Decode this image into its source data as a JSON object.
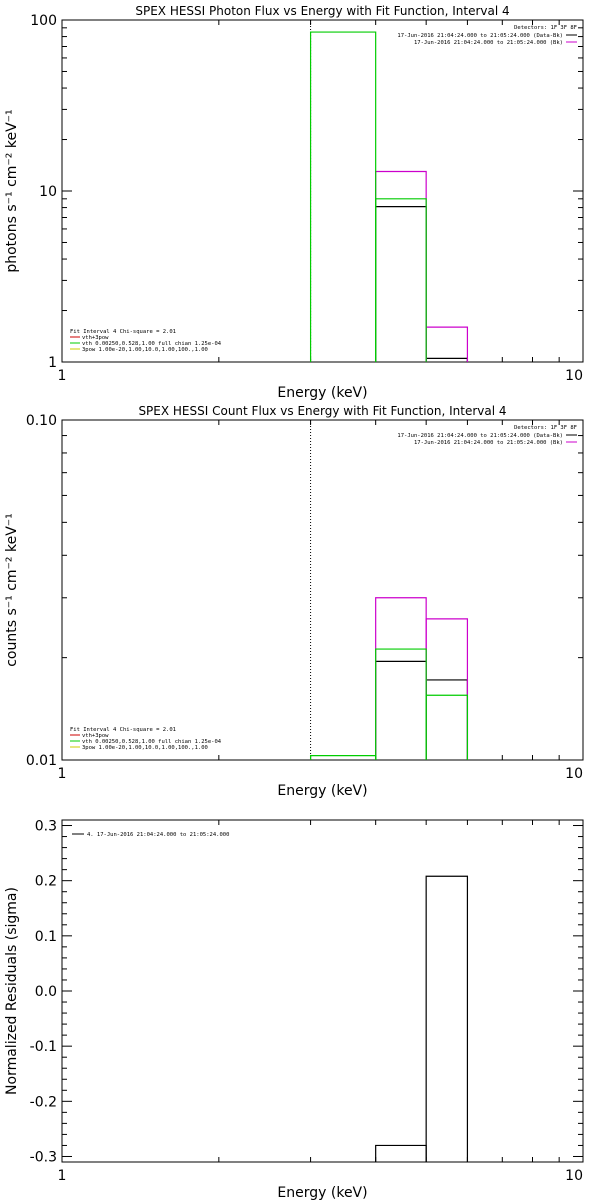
{
  "colors": {
    "black": "#000000",
    "green": "#00cc00",
    "magenta": "#cc00cc",
    "yellow": "#cccc00",
    "red": "#cc0000"
  },
  "chart_data": [
    {
      "type": "line",
      "title": "SPEX HESSI Photon Flux vs Energy with Fit Function, Interval 4",
      "xlabel": "Energy (keV)",
      "ylabel": "photons s⁻¹ cm⁻² keV⁻¹",
      "xlim": [
        1,
        10
      ],
      "ylim": [
        1,
        100
      ],
      "xscale": "log",
      "yscale": "log",
      "xticks": [
        {
          "value": 1,
          "label": "1"
        },
        {
          "value": 10,
          "label": "10"
        }
      ],
      "yticks": [
        {
          "value": 1,
          "label": "1"
        },
        {
          "value": 10,
          "label": "10"
        },
        {
          "value": 100,
          "label": "100"
        }
      ],
      "vline": 3,
      "legend_tr": {
        "title": "Detectors: 1F 3F 8F",
        "items": [
          {
            "text": "17-Jun-2016 21:04:24.000 to 21:05:24.000 (Data-Bk)",
            "color": "#000000"
          },
          {
            "text": "17-Jun-2016 21:04:24.000 to 21:05:24.000 (Bk)",
            "color": "#cc00cc"
          }
        ]
      },
      "legend_bl": {
        "title": "Fit Interval  4   Chi-square = 2.01",
        "items": [
          {
            "text": "vth+3pow",
            "color": "#cc0000"
          },
          {
            "text": "vth 0.00250,0.528,1.00  full chian 1.25e-04",
            "color": "#00cc00"
          },
          {
            "text": "3pow 1.00e-20,1.00,10.0,1.00,100.,1.00",
            "color": "#cccc00"
          }
        ]
      },
      "series": [
        {
          "color": "#000000",
          "edges": [
            4,
            5,
            6
          ],
          "values": [
            8.1,
            1.05
          ]
        },
        {
          "color": "#cc00cc",
          "edges": [
            4,
            5,
            6
          ],
          "values": [
            13,
            1.6
          ]
        },
        {
          "color": "#00cc00",
          "edges": [
            3,
            4,
            5
          ],
          "values": [
            85,
            9.0
          ]
        }
      ]
    },
    {
      "type": "line",
      "title": "SPEX HESSI Count Flux vs Energy with Fit Function, Interval 4",
      "xlabel": "Energy (keV)",
      "ylabel": "counts s⁻¹ cm⁻² keV⁻¹",
      "xlim": [
        1,
        10
      ],
      "ylim": [
        0.01,
        0.1
      ],
      "xscale": "log",
      "yscale": "log",
      "xticks": [
        {
          "value": 1,
          "label": "1"
        },
        {
          "value": 10,
          "label": "10"
        }
      ],
      "yticks": [
        {
          "value": 0.01,
          "label": "0.01"
        },
        {
          "value": 0.1,
          "label": "0.10"
        }
      ],
      "vline": 3,
      "legend_tr": {
        "title": "Detectors: 1F 3F 8F",
        "items": [
          {
            "text": "17-Jun-2016 21:04:24.000 to 21:05:24.000 (Data-Bk)",
            "color": "#000000"
          },
          {
            "text": "17-Jun-2016 21:04:24.000 to 21:05:24.000 (Bk)",
            "color": "#cc00cc"
          }
        ]
      },
      "legend_bl": {
        "title": "Fit Interval  4   Chi-square = 2.01",
        "items": [
          {
            "text": "vth+3pow",
            "color": "#cc0000"
          },
          {
            "text": "vth 0.00250,0.528,1.00  full chian 1.25e-04",
            "color": "#00cc00"
          },
          {
            "text": "3pow 1.00e-20,1.00,10.0,1.00,100.,1.00",
            "color": "#cccc00"
          }
        ]
      },
      "series": [
        {
          "color": "#000000",
          "edges": [
            4,
            5,
            6
          ],
          "values": [
            0.0195,
            0.0172
          ]
        },
        {
          "color": "#cc00cc",
          "edges": [
            4,
            5,
            6
          ],
          "values": [
            0.03,
            0.026
          ]
        },
        {
          "color": "#00cc00",
          "edges": [
            3,
            4,
            5,
            6
          ],
          "values": [
            0.0103,
            0.0212,
            0.0155
          ]
        }
      ]
    },
    {
      "type": "line",
      "title": "",
      "xlabel": "Energy (keV)",
      "ylabel": "Normalized Residuals (sigma)",
      "xlim": [
        1,
        10
      ],
      "ylim": [
        -0.31,
        0.31
      ],
      "xscale": "log",
      "yscale": "linear",
      "xticks": [
        {
          "value": 1,
          "label": "1"
        },
        {
          "value": 10,
          "label": "10"
        }
      ],
      "yticks": [
        {
          "value": -0.3,
          "label": "-0.3"
        },
        {
          "value": -0.2,
          "label": "-0.2"
        },
        {
          "value": -0.1,
          "label": "-0.1"
        },
        {
          "value": 0.0,
          "label": "0.0"
        },
        {
          "value": 0.1,
          "label": "0.1"
        },
        {
          "value": 0.2,
          "label": "0.2"
        },
        {
          "value": 0.3,
          "label": "0.3"
        }
      ],
      "legend_tl": {
        "items": [
          {
            "text": "4. 17-Jun-2016 21:04:24.000 to 21:05:24.000",
            "color": "#000000"
          }
        ]
      },
      "series": [
        {
          "color": "#000000",
          "edges": [
            4,
            5,
            6
          ],
          "values": [
            -0.28,
            0.208
          ]
        }
      ]
    }
  ]
}
